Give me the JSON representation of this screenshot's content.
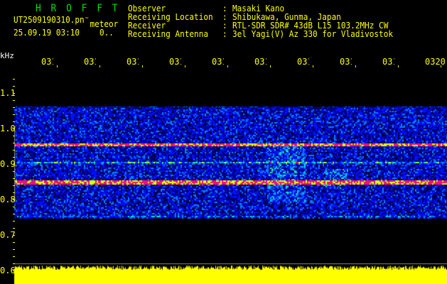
{
  "app_title": "HROFFT",
  "file_name": "UT2509190310.pn",
  "file_suffix": "~",
  "mode": "meteor",
  "datetime": "25.09.19 03:10",
  "status": "0..",
  "info": [
    {
      "label": "Observer",
      "value": "Masaki Kano"
    },
    {
      "label": "Receiving Location",
      "value": "Shibukawa, Gunma, Japan"
    },
    {
      "label": "Receiver",
      "value": "RTL-SDR SDR# 43dB L15 103.2MHz CW"
    },
    {
      "label": "Receiving Antenna",
      "value": "3el Yagi(V) Az 330 for Vladivostok"
    }
  ],
  "y_unit": "kHz",
  "y_ticks": [
    "1.1",
    "1.0",
    "0.9",
    "0.8",
    "0.7",
    "0.6"
  ],
  "time_ticks": [
    "0311",
    "0312",
    "0313",
    "0314",
    "0315",
    "0316",
    "0317",
    "0318",
    "0319",
    "0320"
  ],
  "colors": {
    "text": "#ffff00",
    "title": "#00e000",
    "strong_signal": "#ff1060",
    "background": "#000000"
  }
}
